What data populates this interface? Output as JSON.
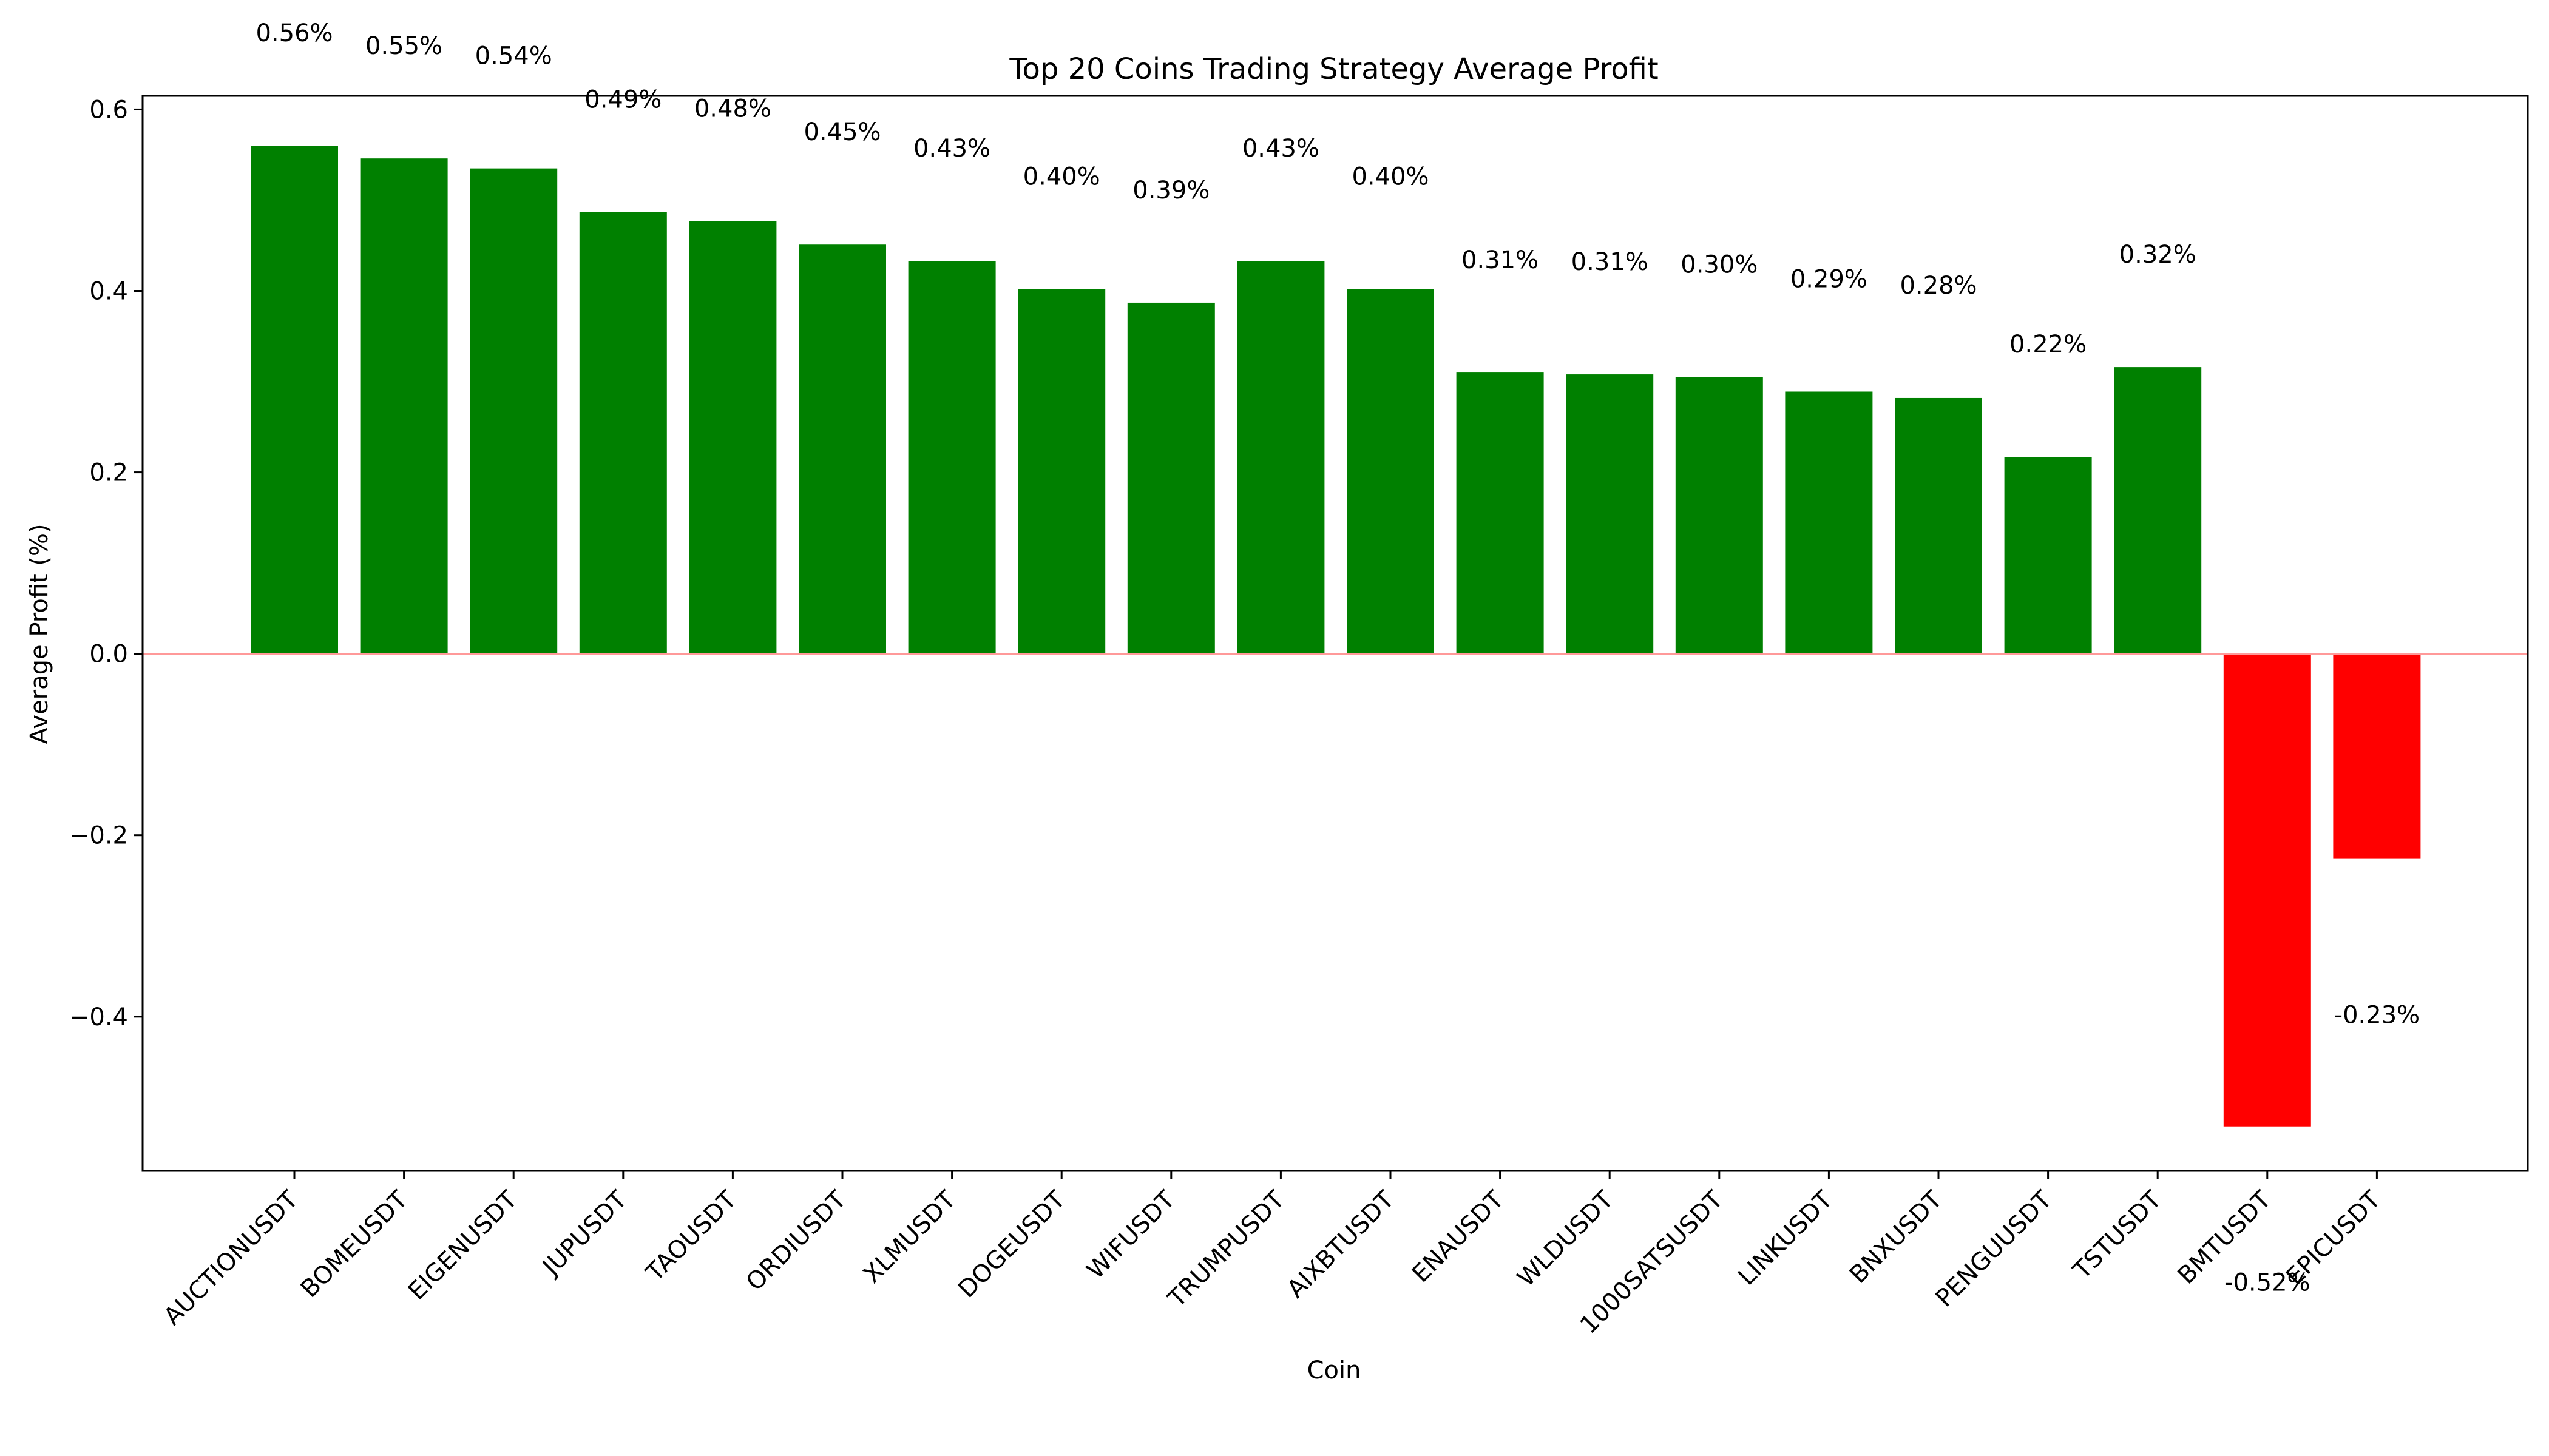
{
  "chart_data": {
    "type": "bar",
    "title": "Top 20 Coins Trading Strategy Average Profit",
    "xlabel": "Coin",
    "ylabel": "Average Profit (%)",
    "ylim": [
      -0.57,
      0.615
    ],
    "yticks": [
      -0.4,
      -0.2,
      0.0,
      0.2,
      0.4,
      0.6
    ],
    "ytick_labels": [
      "−0.4",
      "−0.2",
      "0.0",
      "0.2",
      "0.4",
      "0.6"
    ],
    "grid": false,
    "legend": "none",
    "categories": [
      "AUCTIONUSDT",
      "BOMEUSDT",
      "EIGENUSDT",
      "JUPUSDT",
      "TAOUSDT",
      "ORDIUSDT",
      "XLMUSDT",
      "DOGEUSDT",
      "WIFUSDT",
      "TRUMPUSDT",
      "AIXBTUSDT",
      "ENAUSDT",
      "WLDUSDT",
      "1000SATSUSDT",
      "LINKUSDT",
      "BNXUSDT",
      "PENGUUSDT",
      "TSTUSDT",
      "BMTUSDT",
      "EPICUSDT"
    ],
    "values": [
      0.56,
      0.546,
      0.535,
      0.487,
      0.477,
      0.451,
      0.433,
      0.402,
      0.387,
      0.433,
      0.402,
      0.31,
      0.308,
      0.305,
      0.289,
      0.282,
      0.217,
      0.316,
      -0.521,
      -0.226
    ],
    "data_labels": [
      "0.56%",
      "0.55%",
      "0.54%",
      "0.49%",
      "0.48%",
      "0.45%",
      "0.43%",
      "0.40%",
      "0.39%",
      "0.43%",
      "0.40%",
      "0.31%",
      "0.31%",
      "0.30%",
      "0.29%",
      "0.28%",
      "0.22%",
      "0.32%",
      "-0.52%",
      "-0.23%"
    ],
    "colors": {
      "positive": "#008000",
      "negative": "#ff0000",
      "zero_line": "#ff9999"
    }
  }
}
